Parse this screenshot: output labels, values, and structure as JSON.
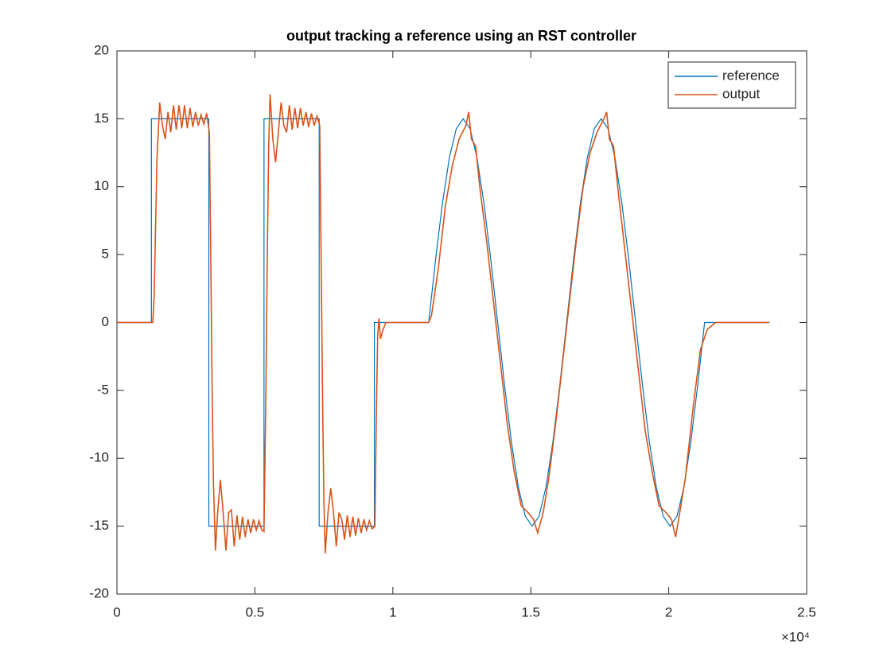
{
  "chart_data": {
    "type": "line",
    "title": "output tracking a reference using an RST controller",
    "x_exponent_label": "×10⁴",
    "xlim": [
      0,
      2.5
    ],
    "xticks": [
      0,
      0.5,
      1,
      1.5,
      2,
      2.5
    ],
    "ylim": [
      -20,
      20
    ],
    "yticks": [
      -20,
      -15,
      -10,
      -5,
      0,
      5,
      10,
      15,
      20
    ],
    "legend": "top-right",
    "series": [
      {
        "name": "reference",
        "color": "#0072BD",
        "x": [
          0,
          0.125,
          0.125,
          0.333,
          0.333,
          0.533,
          0.533,
          0.733,
          0.733,
          0.933,
          0.933,
          1.13,
          1.155,
          1.18,
          1.205,
          1.23,
          1.255,
          1.28,
          1.305,
          1.33,
          1.355,
          1.38,
          1.405,
          1.43,
          1.455,
          1.48,
          1.505,
          1.53,
          1.555,
          1.58,
          1.605,
          1.63,
          1.655,
          1.68,
          1.705,
          1.73,
          1.755,
          1.78,
          1.805,
          1.83,
          1.855,
          1.88,
          1.905,
          1.93,
          1.955,
          1.98,
          2.005,
          2.03,
          2.055,
          2.08,
          2.105,
          2.13,
          2.365
        ],
        "values": [
          0,
          0,
          15,
          15,
          -15,
          -15,
          15,
          15,
          -15,
          -15,
          0,
          0,
          4.64,
          8.82,
          12.14,
          14.27,
          15,
          14.27,
          12.14,
          8.82,
          4.64,
          0,
          -4.64,
          -8.82,
          -12.14,
          -14.27,
          -15,
          -14.27,
          -12.14,
          -8.82,
          -4.64,
          0,
          4.64,
          8.82,
          12.14,
          14.27,
          15,
          14.27,
          12.14,
          8.82,
          4.64,
          0,
          -4.64,
          -8.82,
          -12.14,
          -14.27,
          -15,
          -14.27,
          -12.14,
          -8.82,
          -4.64,
          0,
          0
        ]
      },
      {
        "name": "output",
        "color": "#D95319",
        "x": [
          0,
          0.13,
          0.135,
          0.145,
          0.155,
          0.165,
          0.175,
          0.185,
          0.195,
          0.205,
          0.215,
          0.225,
          0.235,
          0.245,
          0.255,
          0.265,
          0.275,
          0.285,
          0.295,
          0.305,
          0.315,
          0.325,
          0.335,
          0.34,
          0.345,
          0.35,
          0.357,
          0.365,
          0.375,
          0.385,
          0.395,
          0.405,
          0.415,
          0.425,
          0.435,
          0.445,
          0.455,
          0.465,
          0.475,
          0.485,
          0.495,
          0.505,
          0.515,
          0.525,
          0.533,
          0.54,
          0.545,
          0.55,
          0.555,
          0.565,
          0.575,
          0.585,
          0.595,
          0.605,
          0.615,
          0.625,
          0.635,
          0.645,
          0.655,
          0.665,
          0.675,
          0.685,
          0.695,
          0.705,
          0.715,
          0.725,
          0.735,
          0.74,
          0.745,
          0.75,
          0.755,
          0.765,
          0.775,
          0.785,
          0.795,
          0.805,
          0.815,
          0.825,
          0.835,
          0.845,
          0.855,
          0.865,
          0.875,
          0.885,
          0.895,
          0.905,
          0.915,
          0.925,
          0.935,
          0.94,
          0.945,
          0.95,
          0.955,
          0.965,
          0.975,
          1.13,
          1.14,
          1.165,
          1.19,
          1.215,
          1.24,
          1.265,
          1.275,
          1.285,
          1.3,
          1.315,
          1.34,
          1.365,
          1.39,
          1.415,
          1.44,
          1.465,
          1.49,
          1.51,
          1.525,
          1.545,
          1.565,
          1.59,
          1.615,
          1.64,
          1.665,
          1.69,
          1.715,
          1.74,
          1.765,
          1.775,
          1.785,
          1.8,
          1.815,
          1.84,
          1.865,
          1.89,
          1.915,
          1.94,
          1.965,
          1.99,
          2.01,
          2.025,
          2.04,
          2.06,
          2.09,
          2.115,
          2.14,
          2.17,
          2.365
        ],
        "values": [
          0,
          0,
          2,
          12,
          16.2,
          14.5,
          13.5,
          15.5,
          14,
          16,
          14.2,
          16,
          14.3,
          16,
          14.3,
          15.8,
          14.4,
          15.5,
          14.5,
          15.3,
          14.6,
          15.4,
          14,
          5,
          -5,
          -12,
          -16.8,
          -14,
          -11.6,
          -14,
          -16.8,
          -14,
          -13.8,
          -16.5,
          -14.2,
          -16,
          -14.3,
          -15.8,
          -14.5,
          -15.5,
          -14.5,
          -15.3,
          -14.6,
          -15.3,
          -15.4,
          -5,
          5,
          13,
          16.8,
          13.5,
          11.8,
          14,
          16.2,
          14.5,
          14,
          16,
          14.2,
          15.8,
          14.3,
          15.8,
          14.5,
          15.5,
          14.4,
          15.4,
          14.5,
          15.2,
          14.5,
          5,
          -5,
          -13,
          -17,
          -14,
          -12.2,
          -14,
          -16.5,
          -14,
          -14.5,
          -16,
          -14.2,
          -15.8,
          -14.3,
          -15.7,
          -14.4,
          -15.5,
          -14.5,
          -15.3,
          -14.6,
          -15.2,
          -15,
          -7,
          -1,
          0.3,
          -1.2,
          -0.5,
          0,
          0,
          0.5,
          4,
          8.5,
          11.5,
          13.5,
          14.5,
          15.5,
          13.5,
          13,
          10,
          6,
          1.5,
          -3,
          -7.5,
          -11,
          -13.5,
          -14,
          -14.5,
          -15.5,
          -14,
          -11.5,
          -7.5,
          -3,
          1.5,
          6,
          10,
          12.5,
          14,
          15,
          15.5,
          13.5,
          13,
          10,
          5.5,
          1,
          -3.5,
          -8,
          -11,
          -13.5,
          -14,
          -14.5,
          -15.8,
          -14,
          -11.5,
          -6,
          -2,
          -0.5,
          0,
          0
        ]
      }
    ]
  }
}
